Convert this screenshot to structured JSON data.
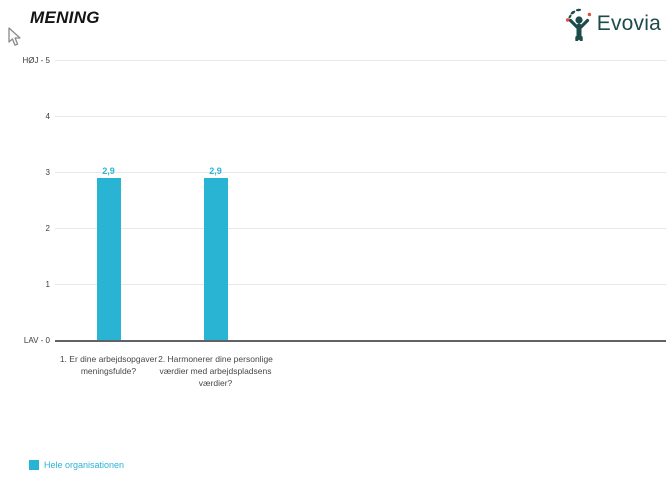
{
  "page": {
    "title": "MENING",
    "brand": {
      "name": "Evovia",
      "logo_color": "#1d4a4a",
      "logo_dot_color": "#e2503c"
    }
  },
  "chart_data": {
    "type": "bar",
    "title": "MENING",
    "categories": [
      "1. Er dine arbejdsopgaver meningsfulde?",
      "2. Harmonerer dine personlige værdier med arbejdspladsens værdier?"
    ],
    "series": [
      {
        "name": "Hele organisationen",
        "color": "#2ab4d4",
        "values": [
          2.9,
          2.9
        ]
      }
    ],
    "value_labels": [
      "2,9",
      "2,9"
    ],
    "ylabel": "",
    "xlabel": "",
    "ylim": [
      0,
      5
    ],
    "yticks": [
      {
        "value": 5,
        "label": "HØJ - 5"
      },
      {
        "value": 4,
        "label": "4"
      },
      {
        "value": 3,
        "label": "3"
      },
      {
        "value": 2,
        "label": "2"
      },
      {
        "value": 1,
        "label": "1"
      },
      {
        "value": 0,
        "label": "LAV - 0"
      }
    ],
    "grid": true,
    "legend_position": "bottom-left"
  }
}
